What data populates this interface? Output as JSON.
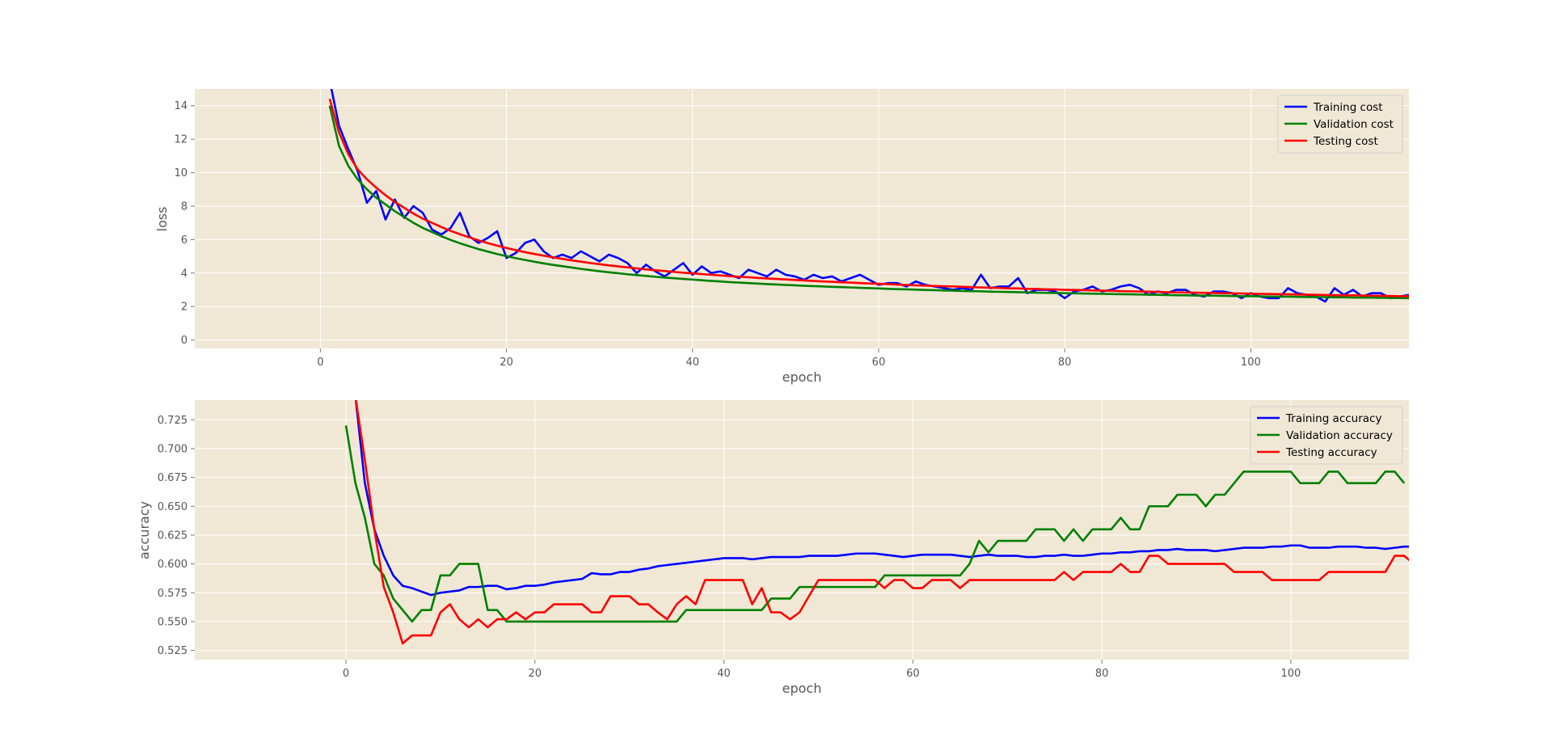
{
  "chart_data": [
    {
      "type": "line",
      "xlabel": "epoch",
      "ylabel": "loss",
      "xlim": [
        -13.5,
        117
      ],
      "ylim": [
        -0.5,
        15.0
      ],
      "xticks": [
        0,
        20,
        40,
        60,
        80,
        100
      ],
      "yticks": [
        0,
        2,
        4,
        6,
        8,
        10,
        12,
        14
      ],
      "grid": true,
      "legend_position": "top-right",
      "series": [
        {
          "name": "Training cost",
          "color": "#0000ff",
          "x_start": 0,
          "values": [
            30.0,
            15.5,
            12.8,
            11.4,
            10.1,
            8.2,
            8.9,
            7.2,
            8.4,
            7.3,
            8.0,
            7.6,
            6.6,
            6.3,
            6.7,
            7.6,
            6.2,
            5.8,
            6.1,
            6.5,
            4.9,
            5.2,
            5.8,
            6.0,
            5.3,
            4.9,
            5.1,
            4.9,
            5.3,
            5.0,
            4.7,
            5.1,
            4.9,
            4.6,
            4.0,
            4.5,
            4.1,
            3.8,
            4.2,
            4.6,
            3.9,
            4.4,
            4.0,
            4.1,
            3.9,
            3.7,
            4.2,
            4.0,
            3.8,
            4.2,
            3.9,
            3.8,
            3.6,
            3.9,
            3.7,
            3.8,
            3.5,
            3.7,
            3.9,
            3.6,
            3.3,
            3.4,
            3.4,
            3.2,
            3.5,
            3.3,
            3.2,
            3.1,
            3.0,
            3.1,
            3.0,
            3.9,
            3.1,
            3.2,
            3.2,
            3.7,
            2.8,
            3.0,
            3.0,
            2.9,
            2.5,
            2.9,
            3.0,
            3.2,
            2.9,
            3.0,
            3.2,
            3.3,
            3.1,
            2.7,
            2.9,
            2.8,
            3.0,
            3.0,
            2.7,
            2.6,
            2.9,
            2.9,
            2.8,
            2.5,
            2.8,
            2.6,
            2.5,
            2.5,
            3.1,
            2.8,
            2.7,
            2.6,
            2.3,
            3.1,
            2.7,
            3.0,
            2.6,
            2.8,
            2.8,
            2.5,
            2.6,
            2.7
          ]
        },
        {
          "name": "Validation cost",
          "color": "#008000",
          "x_start": 1,
          "values": [
            14.0,
            11.6,
            10.4,
            9.6,
            9.0,
            8.5,
            8.1,
            7.7,
            7.35,
            7.0,
            6.7,
            6.45,
            6.2,
            5.98,
            5.78,
            5.6,
            5.43,
            5.28,
            5.14,
            5.01,
            4.89,
            4.78,
            4.68,
            4.58,
            4.49,
            4.41,
            4.33,
            4.25,
            4.18,
            4.11,
            4.05,
            3.99,
            3.93,
            3.88,
            3.83,
            3.78,
            3.73,
            3.69,
            3.65,
            3.61,
            3.57,
            3.53,
            3.5,
            3.46,
            3.43,
            3.4,
            3.37,
            3.34,
            3.32,
            3.29,
            3.27,
            3.24,
            3.22,
            3.2,
            3.18,
            3.16,
            3.14,
            3.12,
            3.1,
            3.08,
            3.06,
            3.04,
            3.03,
            3.01,
            2.99,
            2.98,
            2.96,
            2.95,
            2.93,
            2.92,
            2.91,
            2.89,
            2.88,
            2.87,
            2.86,
            2.84,
            2.83,
            2.82,
            2.81,
            2.8,
            2.79,
            2.78,
            2.77,
            2.76,
            2.75,
            2.74,
            2.73,
            2.72,
            2.71,
            2.7,
            2.69,
            2.68,
            2.67,
            2.66,
            2.66,
            2.65,
            2.64,
            2.63,
            2.62,
            2.62,
            2.61,
            2.6,
            2.59,
            2.59,
            2.58,
            2.57,
            2.57,
            2.56,
            2.55,
            2.55,
            2.54,
            2.53,
            2.53,
            2.52,
            2.52,
            2.51,
            2.5
          ]
        },
        {
          "name": "Testing cost",
          "color": "#ff0000",
          "x_start": 1,
          "values": [
            14.4,
            12.4,
            11.1,
            10.2,
            9.6,
            9.1,
            8.65,
            8.25,
            7.9,
            7.55,
            7.25,
            7.0,
            6.75,
            6.52,
            6.32,
            6.13,
            5.95,
            5.79,
            5.64,
            5.5,
            5.37,
            5.25,
            5.14,
            5.04,
            4.94,
            4.85,
            4.76,
            4.68,
            4.6,
            4.53,
            4.46,
            4.4,
            4.34,
            4.28,
            4.22,
            4.17,
            4.12,
            4.07,
            4.02,
            3.98,
            3.94,
            3.9,
            3.86,
            3.82,
            3.78,
            3.75,
            3.71,
            3.68,
            3.65,
            3.62,
            3.59,
            3.56,
            3.53,
            3.5,
            3.48,
            3.45,
            3.43,
            3.4,
            3.38,
            3.36,
            3.34,
            3.31,
            3.29,
            3.27,
            3.25,
            3.23,
            3.21,
            3.2,
            3.18,
            3.16,
            3.14,
            3.13,
            3.11,
            3.09,
            3.08,
            3.06,
            3.05,
            3.03,
            3.02,
            3.0,
            2.99,
            2.98,
            2.96,
            2.95,
            2.94,
            2.92,
            2.91,
            2.9,
            2.89,
            2.88,
            2.86,
            2.85,
            2.84,
            2.83,
            2.82,
            2.81,
            2.8,
            2.79,
            2.78,
            2.77,
            2.76,
            2.75,
            2.74,
            2.73,
            2.72,
            2.71,
            2.7,
            2.69,
            2.68,
            2.67,
            2.67,
            2.66,
            2.65,
            2.64,
            2.63,
            2.62,
            2.62
          ]
        }
      ]
    },
    {
      "type": "line",
      "xlabel": "epoch",
      "ylabel": "accuracy",
      "xlim": [
        -16,
        112.5
      ],
      "ylim": [
        0.517,
        0.742
      ],
      "xticks": [
        0,
        20,
        40,
        60,
        80,
        100
      ],
      "yticks": [
        0.525,
        0.55,
        0.575,
        0.6,
        0.625,
        0.65,
        0.675,
        0.7,
        0.725
      ],
      "ytick_labels": [
        "0.525",
        "0.550",
        "0.575",
        "0.600",
        "0.625",
        "0.650",
        "0.675",
        "0.700",
        "0.725"
      ],
      "grid": true,
      "legend_position": "top-right",
      "series": [
        {
          "name": "Training accuracy",
          "color": "#0000ff",
          "x_start": 0,
          "values": [
            0.78,
            0.745,
            0.67,
            0.63,
            0.607,
            0.59,
            0.581,
            0.579,
            0.576,
            0.573,
            0.575,
            0.576,
            0.577,
            0.58,
            0.58,
            0.581,
            0.581,
            0.578,
            0.579,
            0.581,
            0.581,
            0.582,
            0.584,
            0.585,
            0.586,
            0.587,
            0.592,
            0.591,
            0.591,
            0.593,
            0.593,
            0.595,
            0.596,
            0.598,
            0.599,
            0.6,
            0.601,
            0.602,
            0.603,
            0.604,
            0.605,
            0.605,
            0.605,
            0.604,
            0.605,
            0.606,
            0.606,
            0.606,
            0.606,
            0.607,
            0.607,
            0.607,
            0.607,
            0.608,
            0.609,
            0.609,
            0.609,
            0.608,
            0.607,
            0.606,
            0.607,
            0.608,
            0.608,
            0.608,
            0.608,
            0.607,
            0.606,
            0.607,
            0.608,
            0.607,
            0.607,
            0.607,
            0.606,
            0.606,
            0.607,
            0.607,
            0.608,
            0.607,
            0.607,
            0.608,
            0.609,
            0.609,
            0.61,
            0.61,
            0.611,
            0.611,
            0.612,
            0.612,
            0.613,
            0.612,
            0.612,
            0.612,
            0.611,
            0.612,
            0.613,
            0.614,
            0.614,
            0.614,
            0.615,
            0.615,
            0.616,
            0.616,
            0.614,
            0.614,
            0.614,
            0.615,
            0.615,
            0.615,
            0.614,
            0.614,
            0.613,
            0.614,
            0.615,
            0.615,
            0.615
          ]
        },
        {
          "name": "Validation accuracy",
          "color": "#008000",
          "x_start": 0,
          "values": [
            0.72,
            0.67,
            0.64,
            0.6,
            0.59,
            0.57,
            0.56,
            0.55,
            0.56,
            0.56,
            0.59,
            0.59,
            0.6,
            0.6,
            0.6,
            0.56,
            0.56,
            0.55,
            0.55,
            0.55,
            0.55,
            0.55,
            0.55,
            0.55,
            0.55,
            0.55,
            0.55,
            0.55,
            0.55,
            0.55,
            0.55,
            0.55,
            0.55,
            0.55,
            0.55,
            0.55,
            0.56,
            0.56,
            0.56,
            0.56,
            0.56,
            0.56,
            0.56,
            0.56,
            0.56,
            0.57,
            0.57,
            0.57,
            0.58,
            0.58,
            0.58,
            0.58,
            0.58,
            0.58,
            0.58,
            0.58,
            0.58,
            0.59,
            0.59,
            0.59,
            0.59,
            0.59,
            0.59,
            0.59,
            0.59,
            0.59,
            0.6,
            0.62,
            0.61,
            0.62,
            0.62,
            0.62,
            0.62,
            0.63,
            0.63,
            0.63,
            0.62,
            0.63,
            0.62,
            0.63,
            0.63,
            0.63,
            0.64,
            0.63,
            0.63,
            0.65,
            0.65,
            0.65,
            0.66,
            0.66,
            0.66,
            0.65,
            0.66,
            0.66,
            0.67,
            0.68,
            0.68,
            0.68,
            0.68,
            0.68,
            0.68,
            0.67,
            0.67,
            0.67,
            0.68,
            0.68,
            0.67,
            0.67,
            0.67,
            0.67,
            0.68,
            0.68,
            0.67
          ]
        },
        {
          "name": "Testing accuracy",
          "color": "#ff0000",
          "x_start": 0,
          "values": [
            0.78,
            0.745,
            0.69,
            0.63,
            0.58,
            0.558,
            0.531,
            0.538,
            0.538,
            0.538,
            0.558,
            0.565,
            0.552,
            0.545,
            0.552,
            0.545,
            0.552,
            0.552,
            0.558,
            0.552,
            0.558,
            0.558,
            0.565,
            0.565,
            0.565,
            0.565,
            0.558,
            0.558,
            0.572,
            0.572,
            0.572,
            0.565,
            0.565,
            0.558,
            0.552,
            0.565,
            0.572,
            0.565,
            0.586,
            0.586,
            0.586,
            0.586,
            0.586,
            0.565,
            0.579,
            0.558,
            0.558,
            0.552,
            0.558,
            0.572,
            0.586,
            0.586,
            0.586,
            0.586,
            0.586,
            0.586,
            0.586,
            0.579,
            0.586,
            0.586,
            0.579,
            0.579,
            0.586,
            0.586,
            0.586,
            0.579,
            0.586,
            0.586,
            0.586,
            0.586,
            0.586,
            0.586,
            0.586,
            0.586,
            0.586,
            0.586,
            0.593,
            0.586,
            0.593,
            0.593,
            0.593,
            0.593,
            0.6,
            0.593,
            0.593,
            0.607,
            0.607,
            0.6,
            0.6,
            0.6,
            0.6,
            0.6,
            0.6,
            0.6,
            0.593,
            0.593,
            0.593,
            0.593,
            0.586,
            0.586,
            0.586,
            0.586,
            0.586,
            0.586,
            0.593,
            0.593,
            0.593,
            0.593,
            0.593,
            0.593,
            0.593,
            0.607,
            0.607,
            0.6
          ]
        }
      ]
    }
  ]
}
